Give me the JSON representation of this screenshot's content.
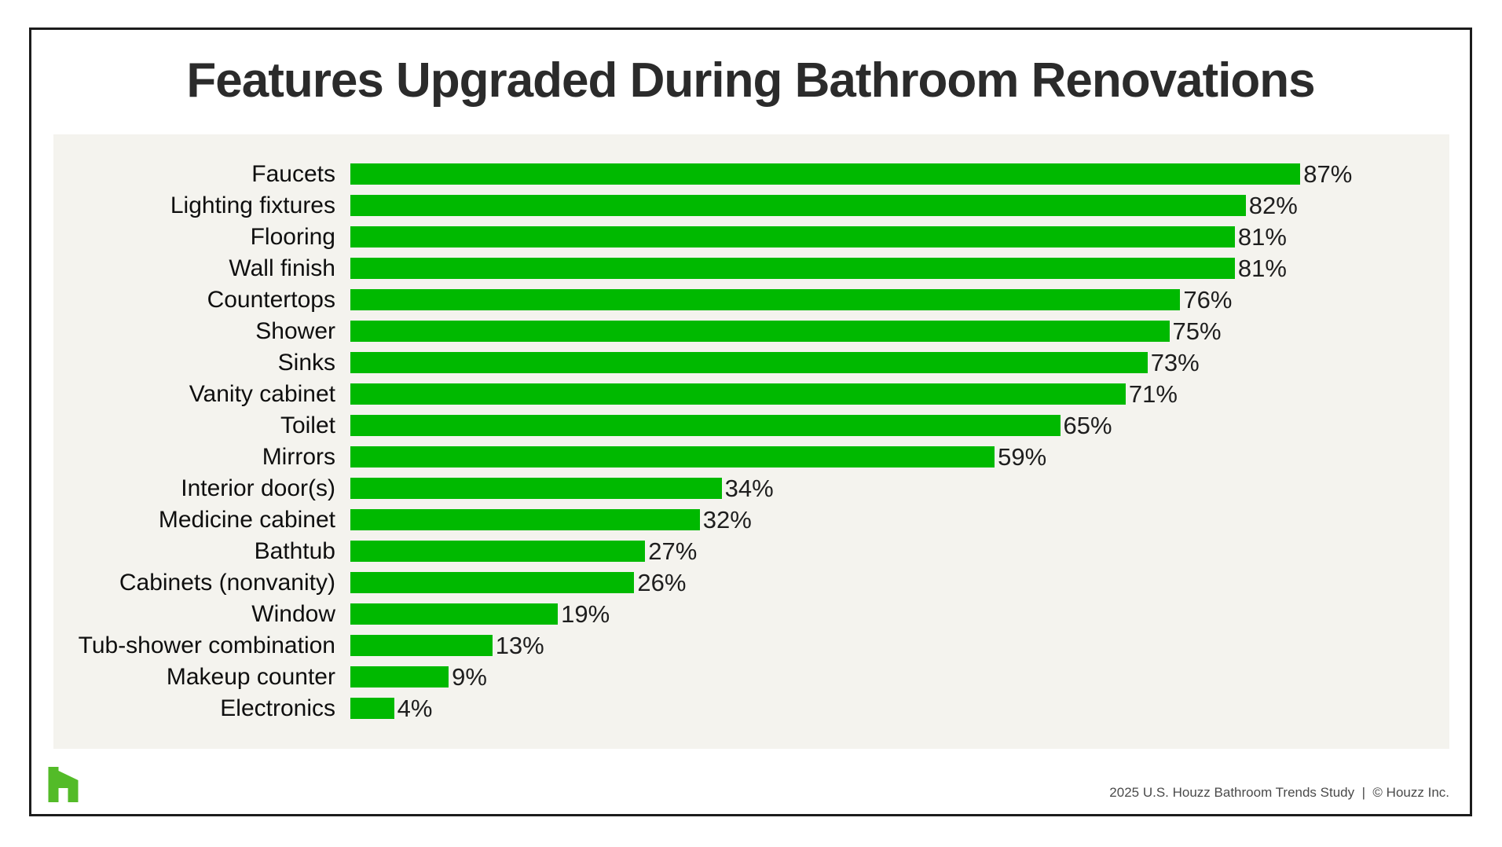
{
  "title": "Features Upgraded During Bathroom Renovations",
  "footer": {
    "attribution": "2025 U.S. Houzz Bathroom Trends Study  |  © Houzz Inc."
  },
  "logo": {
    "name": "houzz-logo",
    "color": "#53bb28"
  },
  "colors": {
    "bar_green": "#00b900",
    "panel_background": "#f4f3ee",
    "title_text": "#2b2b2b",
    "label_text": "#0f0f0f",
    "value_text": "#1e1e1e",
    "footer_text": "#4a4a4a",
    "frame_border": "#1c1c1c"
  },
  "chart_data": {
    "type": "bar",
    "orientation": "horizontal",
    "title": "Features Upgraded During Bathroom Renovations",
    "categories": [
      "Faucets",
      "Lighting fixtures",
      "Flooring",
      "Wall finish",
      "Countertops",
      "Shower",
      "Sinks",
      "Vanity cabinet",
      "Toilet",
      "Mirrors",
      "Interior door(s)",
      "Medicine cabinet",
      "Bathtub",
      "Cabinets (nonvanity)",
      "Window",
      "Tub-shower combination",
      "Makeup counter",
      "Electronics"
    ],
    "values": [
      87,
      82,
      81,
      81,
      76,
      75,
      73,
      71,
      65,
      59,
      34,
      32,
      27,
      26,
      19,
      13,
      9,
      4
    ],
    "value_suffix": "%",
    "xlabel": "",
    "ylabel": "",
    "xlim": [
      0,
      100
    ],
    "grid": false,
    "legend": false,
    "data_labels": "at-bar-end"
  }
}
